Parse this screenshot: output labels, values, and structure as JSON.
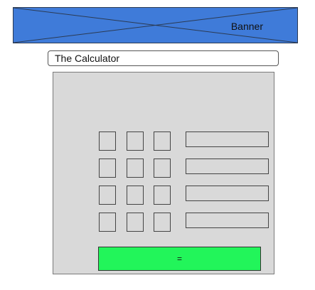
{
  "banner": {
    "label": "Banner",
    "color": "#3f7bd9"
  },
  "title": {
    "text": "The Calculator"
  },
  "keypad": {
    "rows": 4,
    "cols": 3
  },
  "fields": {
    "count": 4
  },
  "equals_button": {
    "label": "=",
    "color": "#22f55a"
  },
  "panel": {
    "color": "#d9d9d9"
  }
}
